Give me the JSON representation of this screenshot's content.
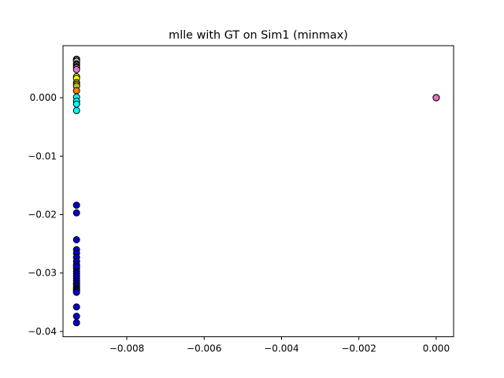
{
  "chart_data": {
    "type": "scatter",
    "title": "mlle with GT on Sim1 (minmax)",
    "xlabel": "",
    "ylabel": "",
    "xlim": [
      -0.00965,
      0.00045
    ],
    "ylim": [
      -0.0409,
      0.0089
    ],
    "x_ticks": [
      -0.008,
      -0.006,
      -0.004,
      -0.002,
      0.0
    ],
    "x_tick_labels": [
      "−0.008",
      "−0.006",
      "−0.004",
      "−0.002",
      "0.000"
    ],
    "y_ticks": [
      0.0,
      -0.01,
      -0.02,
      -0.03,
      -0.04
    ],
    "y_tick_labels": [
      "0.000",
      "−0.01",
      "−0.02",
      "−0.03",
      "−0.04"
    ],
    "y_tick_label_first": "0.0",
    "y_tick_label_list": [
      "0.0",
      "−0.01",
      "−0.02",
      "−0.03",
      "−0.04"
    ],
    "grid": false,
    "legend": "none",
    "marker_edge_color": "#000000",
    "series": [
      {
        "color": "#c8c8c8",
        "x": [
          -0.0093,
          -0.0093,
          -0.0093
        ],
        "y": [
          0.0066,
          0.0064,
          0.0062
        ]
      },
      {
        "color": "#8c564b",
        "x": [
          -0.0093,
          -0.0093,
          -0.0093
        ],
        "y": [
          0.0058,
          0.0056,
          0.0053
        ]
      },
      {
        "color": "#e377c2",
        "x": [
          -0.0093,
          -0.0093
        ],
        "y": [
          0.0051,
          0.0048
        ]
      },
      {
        "color": "#ffff00",
        "x": [
          -0.0093,
          -0.0093
        ],
        "y": [
          0.0036,
          0.0033
        ]
      },
      {
        "color": "#bcbd22",
        "x": [
          -0.0093,
          -0.0093,
          -0.0093
        ],
        "y": [
          0.0026,
          0.0023,
          0.002
        ]
      },
      {
        "color": "#ff7f0e",
        "x": [
          -0.0093
        ],
        "y": [
          0.0012
        ]
      },
      {
        "color": "#00ffff",
        "x": [
          -0.0093,
          -0.0093,
          -0.0093,
          -0.0093
        ],
        "y": [
          0.0001,
          -0.0006,
          -0.0011,
          -0.0022
        ]
      },
      {
        "color": "#e377c2",
        "x": [
          0.0,
          0.0,
          0.0
        ],
        "y": [
          0.0,
          0.0,
          0.0
        ]
      },
      {
        "color": "#0000cd",
        "x": [
          -0.0093,
          -0.0093,
          -0.0093,
          -0.0093,
          -0.0093,
          -0.0093,
          -0.0093,
          -0.0093,
          -0.0093,
          -0.0093,
          -0.0093,
          -0.0093,
          -0.0093,
          -0.0093,
          -0.0093,
          -0.0093,
          -0.0093,
          -0.0093,
          -0.0093,
          -0.0093,
          -0.0093,
          -0.0093,
          -0.0093,
          -0.0093,
          -0.0093,
          -0.0093
        ],
        "y": [
          -0.0184,
          -0.0197,
          -0.0243,
          -0.026,
          -0.0266,
          -0.0273,
          -0.028,
          -0.0286,
          -0.0292,
          -0.0297,
          -0.0301,
          -0.0305,
          -0.0309,
          -0.0313,
          -0.0317,
          -0.032,
          -0.0323,
          -0.0326,
          -0.0328,
          -0.033,
          -0.0331,
          -0.0333,
          -0.0358,
          -0.0374,
          -0.0385,
          -0.0289
        ]
      }
    ]
  }
}
